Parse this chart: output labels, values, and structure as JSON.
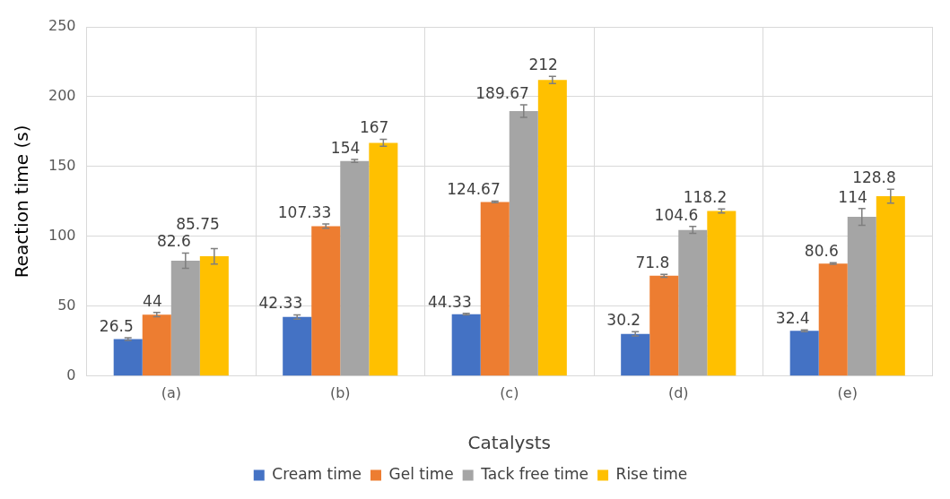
{
  "chart_data": {
    "type": "bar",
    "xlabel": "Catalysts",
    "ylabel": "Reaction time (s)",
    "categories": [
      "(a)",
      "(b)",
      "(c)",
      "(d)",
      "(e)"
    ],
    "series": [
      {
        "name": "Cream time",
        "color": "#4472c4",
        "values": [
          26.5,
          42.33,
          44.33,
          30.2,
          32.4
        ],
        "errors": [
          1,
          1.5,
          0.6,
          1.5,
          0.6
        ]
      },
      {
        "name": "Gel time",
        "color": "#ed7d31",
        "values": [
          44,
          107.33,
          124.67,
          71.8,
          80.6
        ],
        "errors": [
          1.5,
          1.5,
          0.6,
          1,
          0.5
        ]
      },
      {
        "name": "Tack free time",
        "color": "#a5a5a5",
        "values": [
          82.6,
          154,
          189.67,
          104.6,
          114
        ],
        "errors": [
          5.5,
          1,
          4.5,
          2.5,
          6
        ]
      },
      {
        "name": "Rise time",
        "color": "#ffc000",
        "values": [
          85.75,
          167,
          212,
          118.2,
          128.8
        ],
        "errors": [
          5.5,
          2.5,
          2.5,
          1.5,
          5
        ]
      }
    ],
    "ylim": [
      0,
      250
    ],
    "yticks": [
      0,
      50,
      100,
      150,
      200,
      250
    ],
    "grid": true,
    "legend": "bottom",
    "data_labels": true
  }
}
